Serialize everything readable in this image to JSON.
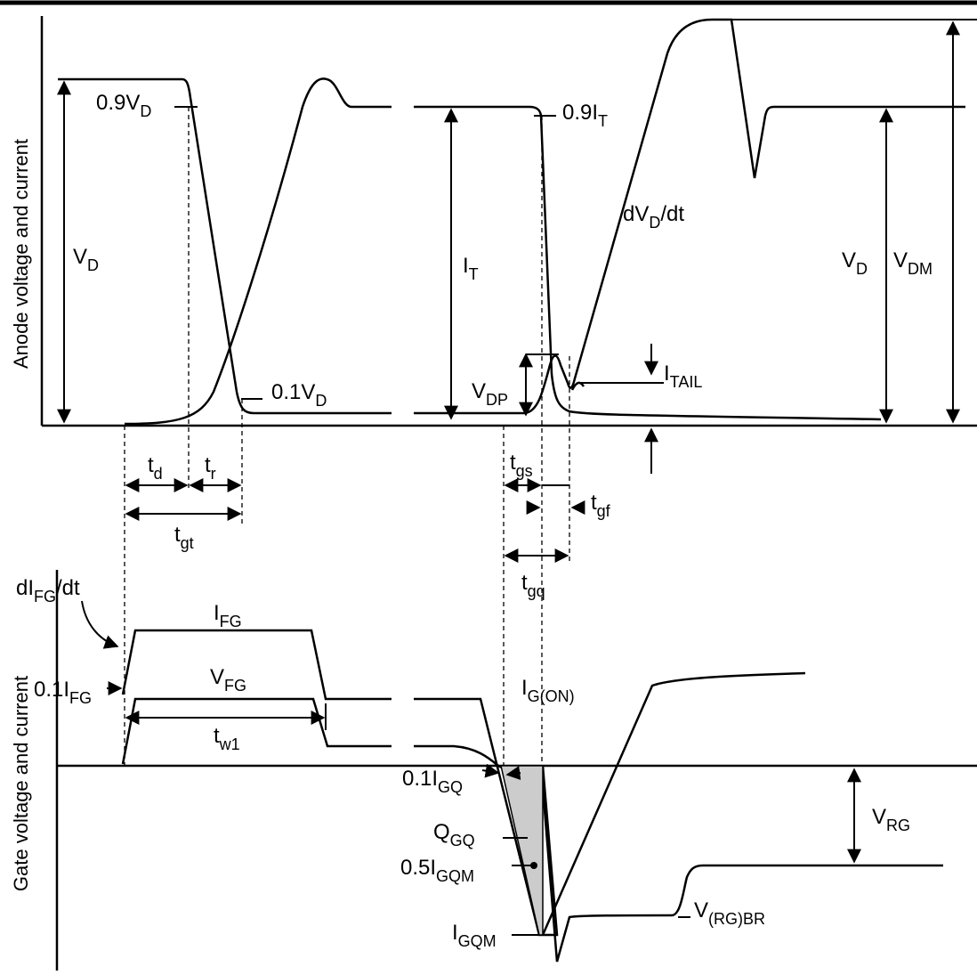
{
  "axes": {
    "upper_label": "Anode voltage and current",
    "lower_label": "Gate voltage and current"
  },
  "labels": {
    "p09VD": {
      "main": "0.9V",
      "sub": "D"
    },
    "p01VD": {
      "main": "0.1V",
      "sub": "D"
    },
    "VD_left": {
      "main": "V",
      "sub": "D"
    },
    "IT": {
      "main": "I",
      "sub": "T"
    },
    "p09IT": {
      "main": "0.9I",
      "sub": "T"
    },
    "dVDdt": {
      "main": "dV",
      "sub": "D",
      "tail": "/dt"
    },
    "VD_right": {
      "main": "V",
      "sub": "D"
    },
    "VDM": {
      "main": "V",
      "sub": "DM"
    },
    "VDP": {
      "main": "V",
      "sub": "DP"
    },
    "ITAIL": {
      "main": "I",
      "sub": "TAIL"
    },
    "td": {
      "main": "t",
      "sub": "d"
    },
    "tr": {
      "main": "t",
      "sub": "r"
    },
    "tgt": {
      "main": "t",
      "sub": "gt"
    },
    "tgs": {
      "main": "t",
      "sub": "gs"
    },
    "tgf": {
      "main": "t",
      "sub": "gf"
    },
    "tgq": {
      "main": "t",
      "sub": "gq"
    },
    "dIFGdt": {
      "main": "dI",
      "sub": "FG",
      "tail": "/dt"
    },
    "IFG": {
      "main": "I",
      "sub": "FG"
    },
    "VFG": {
      "main": "V",
      "sub": "FG"
    },
    "p01IFG": {
      "main": "0.1I",
      "sub": "FG"
    },
    "IGON": {
      "main": "I",
      "sub": "G(ON)"
    },
    "p01IGQ": {
      "main": "0.1I",
      "sub": "GQ"
    },
    "tw1": {
      "main": "t",
      "sub": "w1"
    },
    "QGQ": {
      "main": "Q",
      "sub": "GQ"
    },
    "p05IGQM": {
      "main": "0.5I",
      "sub": "GQM"
    },
    "IGQM": {
      "main": "I",
      "sub": "GQM"
    },
    "VRG": {
      "main": "V",
      "sub": "RG"
    },
    "VRGBR": {
      "main": "V",
      "sub": "(RG)BR"
    }
  }
}
